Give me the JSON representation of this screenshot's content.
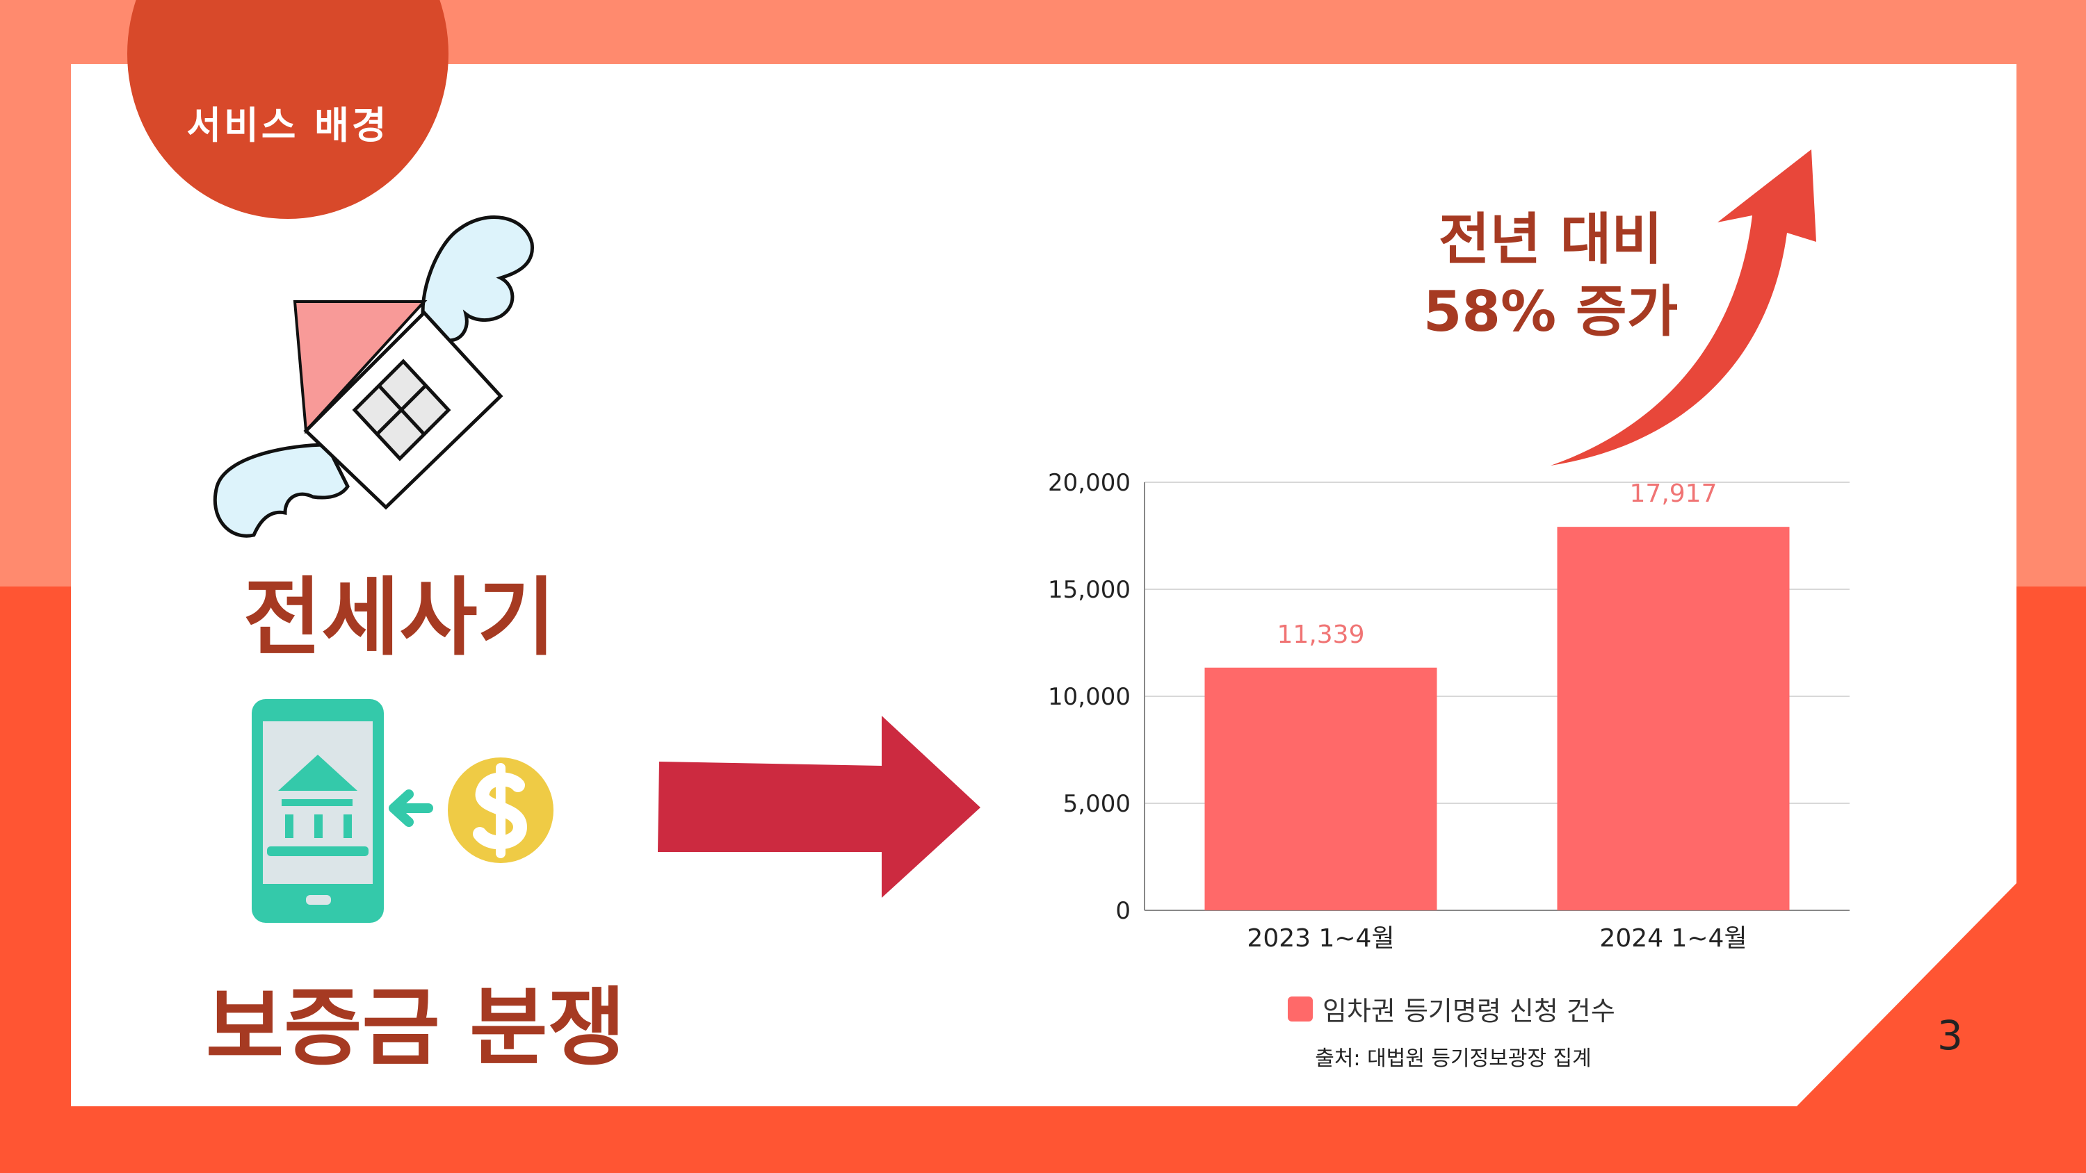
{
  "section_tag": "서비스 배경",
  "labels": {
    "fraud": "전세사기",
    "dispute": "보증금 분쟁"
  },
  "increase_note": {
    "line1": "전년 대비",
    "line2": "58% 증가"
  },
  "chart_data": {
    "type": "bar",
    "categories": [
      "2023 1~4월",
      "2024 1~4월"
    ],
    "series": [
      {
        "name": "임차권 등기명령 신청 건수",
        "values": [
          11339,
          17917
        ],
        "color": "#FF6969"
      }
    ],
    "data_labels": [
      "11,339",
      "17,917"
    ],
    "ylim": [
      0,
      20000
    ],
    "yticks": [
      0,
      5000,
      10000,
      15000,
      20000
    ],
    "ytick_labels": [
      "0",
      "5,000",
      "10,000",
      "15,000",
      "20,000"
    ],
    "grid": true,
    "legend_position": "bottom",
    "source": "출처: 대법원 등기정보광장 집계"
  },
  "colors": {
    "top_background": "#FF8A6E",
    "bottom_background": "#FF5533",
    "accent": "#D8492A",
    "title_text": "#A63A22",
    "bar": "#FF6969",
    "arrow_right": "#CC2A40",
    "arrow_up": "#E8473A"
  },
  "icons": [
    "flying-house-icon",
    "mobile-bank-icon",
    "dollar-coin-icon",
    "right-arrow-icon",
    "up-trend-arrow-icon"
  ],
  "page_number": "3"
}
